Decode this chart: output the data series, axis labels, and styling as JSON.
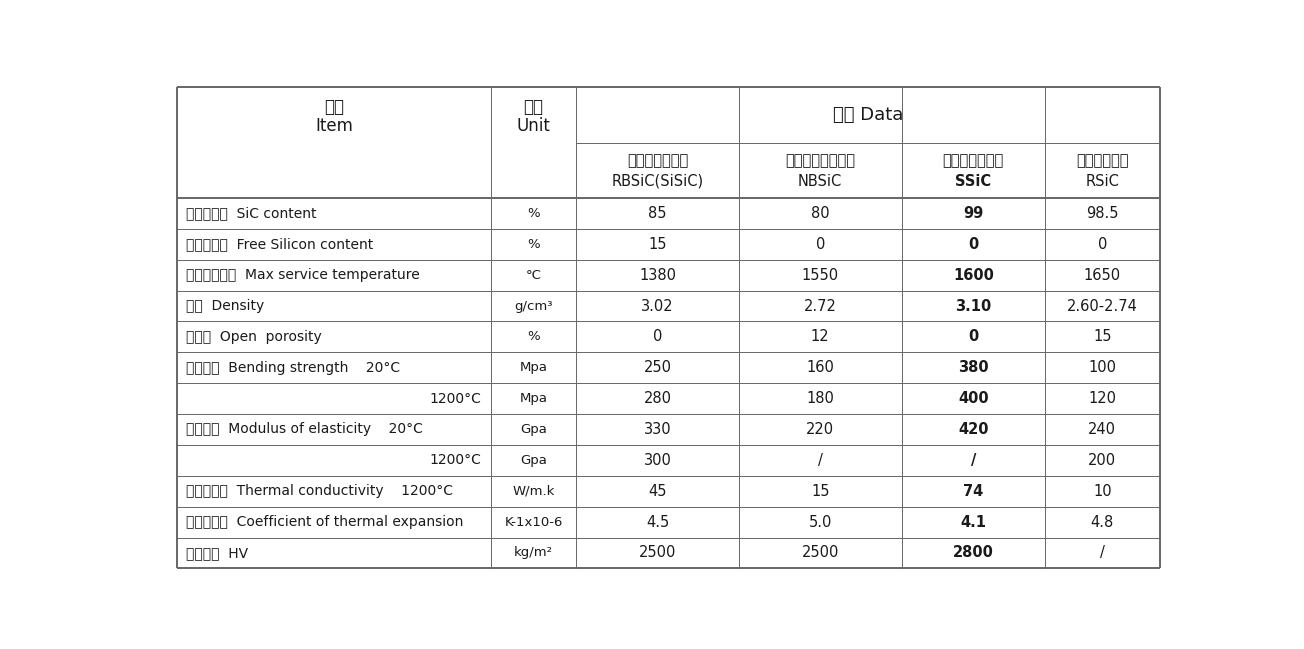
{
  "bg_color": "#ffffff",
  "text_color": "#1a1a1a",
  "line_color": "#666666",
  "header_h1_label_zh": "项目",
  "header_h1_label_en": "Item",
  "header_h1_unit_zh": "单位",
  "header_h1_unit_en": "Unit",
  "header_h1_data": "指标 Data",
  "materials": [
    {
      "zh": "反应烧结碳化硅",
      "en": "RBSiC(SiSiC)",
      "bold": false
    },
    {
      "zh": "氮化硅结合碳化硅",
      "en": "NBSiC",
      "bold": false
    },
    {
      "zh": "无压烧结碳化硅",
      "en": "SSiC",
      "bold": true
    },
    {
      "zh": "重结晶碳化硅",
      "en": "RSiC",
      "bold": false
    }
  ],
  "rows": [
    {
      "item_zh": "碳化硅含量",
      "item_en": "SiC content",
      "unit": "%",
      "v1": "85",
      "v2": "80",
      "v3": "99",
      "v4": "98.5",
      "v3bold": true,
      "indent": false
    },
    {
      "item_zh": "游离硅含量",
      "item_en": "Free Silicon content",
      "unit": "%",
      "v1": "15",
      "v2": "0",
      "v3": "0",
      "v4": "0",
      "v3bold": true,
      "indent": false
    },
    {
      "item_zh": "最高使用温度",
      "item_en": "Max service temperature",
      "unit": "°C",
      "v1": "1380",
      "v2": "1550",
      "v3": "1600",
      "v4": "1650",
      "v3bold": true,
      "indent": false
    },
    {
      "item_zh": "密度",
      "item_en": "Density",
      "unit": "g/cm³",
      "v1": "3.02",
      "v2": "2.72",
      "v3": "3.10",
      "v4": "2.60-2.74",
      "v3bold": true,
      "indent": false
    },
    {
      "item_zh": "气孔率",
      "item_en": "Open  porosity",
      "unit": "%",
      "v1": "0",
      "v2": "12",
      "v3": "0",
      "v4": "15",
      "v3bold": true,
      "indent": false
    },
    {
      "item_zh": "抗弯强度",
      "item_en": "Bending strength    20°C",
      "unit": "Mpa",
      "v1": "250",
      "v2": "160",
      "v3": "380",
      "v4": "100",
      "v3bold": true,
      "indent": false
    },
    {
      "item_zh": "",
      "item_en": "1200°C",
      "unit": "Mpa",
      "v1": "280",
      "v2": "180",
      "v3": "400",
      "v4": "120",
      "v3bold": true,
      "indent": true
    },
    {
      "item_zh": "弹性模量",
      "item_en": "Modulus of elasticity    20°C",
      "unit": "Gpa",
      "v1": "330",
      "v2": "220",
      "v3": "420",
      "v4": "240",
      "v3bold": true,
      "indent": false
    },
    {
      "item_zh": "",
      "item_en": "1200°C",
      "unit": "Gpa",
      "v1": "300",
      "v2": "/",
      "v3": "/",
      "v4": "200",
      "v3bold": true,
      "indent": true
    },
    {
      "item_zh": "热传导系数",
      "item_en": "Thermal conductivity    1200°C",
      "unit": "W/m.k",
      "v1": "45",
      "v2": "15",
      "v3": "74",
      "v4": "10",
      "v3bold": true,
      "indent": false
    },
    {
      "item_zh": "热膨胀系数",
      "item_en": "Coefficient of thermal expansion",
      "unit": "K-1x10-6",
      "v1": "4.5",
      "v2": "5.0",
      "v3": "4.1",
      "v4": "4.8",
      "v3bold": true,
      "indent": false
    },
    {
      "item_zh": "维氏硬度",
      "item_en": "HV",
      "unit": "kg/m²",
      "v1": "2500",
      "v2": "2500",
      "v3": "2800",
      "v4": "/",
      "v3bold": true,
      "indent": false
    }
  ]
}
